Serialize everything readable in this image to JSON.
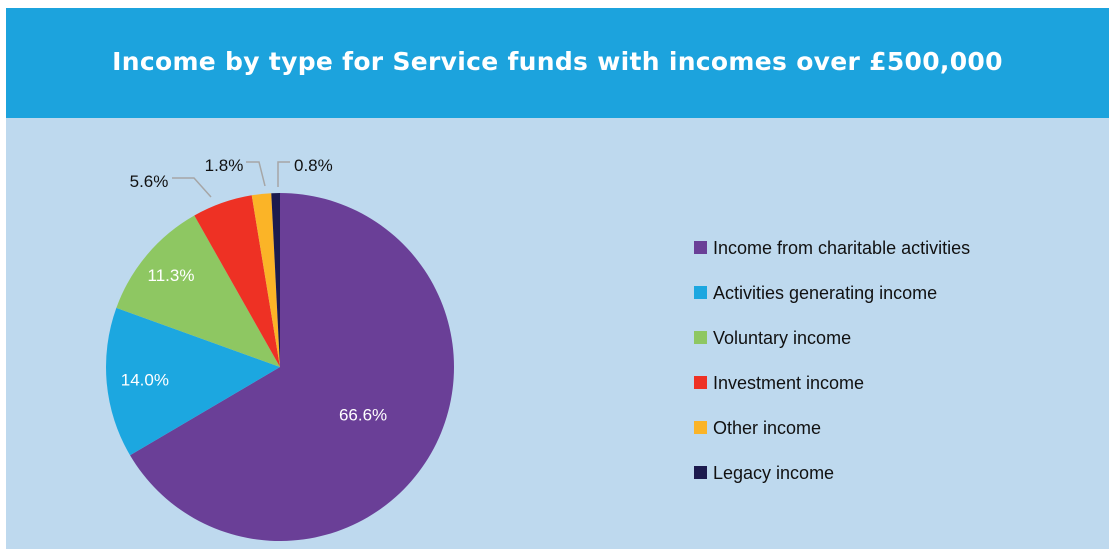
{
  "title": "Income by type for Service funds with incomes over £500,000",
  "chart_data": {
    "type": "pie",
    "title": "Income by type for Service funds with incomes over £500,000",
    "legend_position": "right",
    "slices": [
      {
        "name": "Income from charitable activities",
        "value": 66.6,
        "label": "66.6%",
        "color": "#6a3f97"
      },
      {
        "name": "Activities generating income",
        "value": 14.0,
        "label": "14.0%",
        "color": "#1ca7e0"
      },
      {
        "name": "Voluntary income",
        "value": 11.3,
        "label": "11.3%",
        "color": "#8ec762"
      },
      {
        "name": "Investment income",
        "value": 5.6,
        "label": "5.6%",
        "color": "#ee3124"
      },
      {
        "name": "Other income",
        "value": 1.8,
        "label": "1.8%",
        "color": "#fbb427"
      },
      {
        "name": "Legacy income",
        "value": 0.8,
        "label": "0.8%",
        "color": "#1c1a4e"
      }
    ]
  }
}
